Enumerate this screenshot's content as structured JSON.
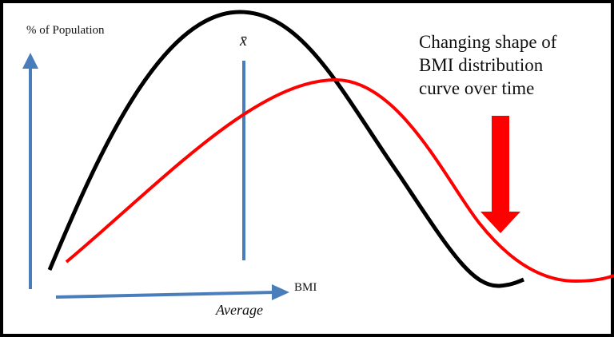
{
  "diagram": {
    "y_axis_label": "% of Population",
    "mean_label": "x̄",
    "x_axis_label": "BMI",
    "average_label": "Average",
    "note_lines": [
      "Changing shape of",
      "BMI distribution",
      "curve over time"
    ]
  }
}
